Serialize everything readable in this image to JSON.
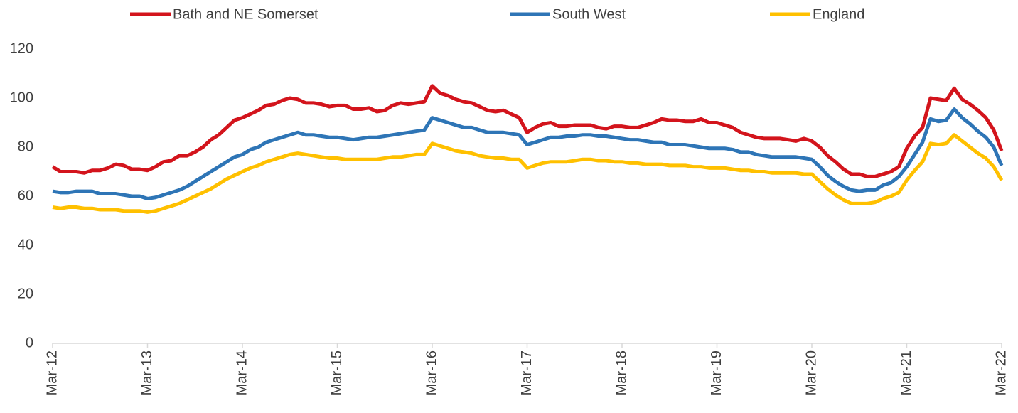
{
  "chart_data": {
    "type": "line",
    "categories": [
      "Mar-12",
      null,
      null,
      null,
      null,
      null,
      null,
      null,
      null,
      null,
      null,
      null,
      "Mar-13",
      null,
      null,
      null,
      null,
      null,
      null,
      null,
      null,
      null,
      null,
      null,
      "Mar-14",
      null,
      null,
      null,
      null,
      null,
      null,
      null,
      null,
      null,
      null,
      null,
      "Mar-15",
      null,
      null,
      null,
      null,
      null,
      null,
      null,
      null,
      null,
      null,
      null,
      "Mar-16",
      null,
      null,
      null,
      null,
      null,
      null,
      null,
      null,
      null,
      null,
      null,
      "Mar-17",
      null,
      null,
      null,
      null,
      null,
      null,
      null,
      null,
      null,
      null,
      null,
      "Mar-18",
      null,
      null,
      null,
      null,
      null,
      null,
      null,
      null,
      null,
      null,
      null,
      "Mar-19",
      null,
      null,
      null,
      null,
      null,
      null,
      null,
      null,
      null,
      null,
      null,
      "Mar-20",
      null,
      null,
      null,
      null,
      null,
      null,
      null,
      null,
      null,
      null,
      null,
      "Mar-21",
      null,
      null,
      null,
      null,
      null,
      null,
      null,
      null,
      null,
      null,
      null,
      "Mar-22"
    ],
    "series": [
      {
        "name": "Bath and NE Somerset",
        "color": "#d3141c",
        "values": [
          72,
          70,
          70,
          70,
          69.5,
          70.5,
          70.5,
          71.5,
          73,
          72.5,
          71,
          71,
          70.5,
          72,
          74,
          74.5,
          76.5,
          76.5,
          78,
          80,
          83,
          85,
          88,
          91,
          92,
          93.5,
          95,
          97,
          97.5,
          99,
          100,
          99.5,
          98,
          98,
          97.5,
          96.5,
          97,
          97,
          95.5,
          95.5,
          96,
          94.5,
          95,
          97,
          98,
          97.5,
          98,
          98.5,
          105,
          102,
          101,
          99.5,
          98.5,
          98,
          96.5,
          95,
          94.5,
          95,
          93.5,
          92,
          86,
          88,
          89.5,
          90,
          88.5,
          88.5,
          89,
          89,
          89,
          88,
          87.5,
          88.5,
          88.5,
          88,
          88,
          89,
          90,
          91.5,
          91,
          91,
          90.5,
          90.5,
          91.5,
          90,
          90,
          89,
          88,
          86,
          85,
          84,
          83.5,
          83.5,
          83.5,
          83,
          82.5,
          83.5,
          82.5,
          80,
          76.5,
          74,
          71,
          69,
          69,
          68,
          68,
          69,
          70,
          72,
          79.5,
          84.5,
          88,
          100,
          99.5,
          99,
          104,
          99.5,
          97.5,
          95,
          92,
          87,
          78.5
        ]
      },
      {
        "name": "South West",
        "color": "#2e75b6",
        "values": [
          62,
          61.5,
          61.5,
          62,
          62,
          62,
          61,
          61,
          61,
          60.5,
          60,
          60,
          59,
          59.5,
          60.5,
          61.5,
          62.5,
          64,
          66,
          68,
          70,
          72,
          74,
          76,
          77,
          79,
          80,
          82,
          83,
          84,
          85,
          86,
          85,
          85,
          84.5,
          84,
          84,
          83.5,
          83,
          83.5,
          84,
          84,
          84.5,
          85,
          85.5,
          86,
          86.5,
          87,
          92,
          91,
          90,
          89,
          88,
          88,
          87,
          86,
          86,
          86,
          85.5,
          85,
          81,
          82,
          83,
          84,
          84,
          84.5,
          84.5,
          85,
          85,
          84.5,
          84.5,
          84,
          83.5,
          83,
          83,
          82.5,
          82,
          82,
          81,
          81,
          81,
          80.5,
          80,
          79.5,
          79.5,
          79.5,
          79,
          78,
          78,
          77,
          76.5,
          76,
          76,
          76,
          76,
          75.5,
          75,
          72,
          68.5,
          66,
          64,
          62.5,
          62,
          62.5,
          62.5,
          64.5,
          65.5,
          68,
          72,
          77,
          82,
          91.5,
          90.5,
          91,
          95.5,
          92,
          89.5,
          86.5,
          84,
          80,
          72.5
        ]
      },
      {
        "name": "England",
        "color": "#ffc000",
        "values": [
          55.5,
          55,
          55.5,
          55.5,
          55,
          55,
          54.5,
          54.5,
          54.5,
          54,
          54,
          54,
          53.5,
          54,
          55,
          56,
          57,
          58.5,
          60,
          61.5,
          63,
          65,
          67,
          68.5,
          70,
          71.5,
          72.5,
          74,
          75,
          76,
          77,
          77.5,
          77,
          76.5,
          76,
          75.5,
          75.5,
          75,
          75,
          75,
          75,
          75,
          75.5,
          76,
          76,
          76.5,
          77,
          77,
          81.5,
          80.5,
          79.5,
          78.5,
          78,
          77.5,
          76.5,
          76,
          75.5,
          75.5,
          75,
          75,
          71.5,
          72.5,
          73.5,
          74,
          74,
          74,
          74.5,
          75,
          75,
          74.5,
          74.5,
          74,
          74,
          73.5,
          73.5,
          73,
          73,
          73,
          72.5,
          72.5,
          72.5,
          72,
          72,
          71.5,
          71.5,
          71.5,
          71,
          70.5,
          70.5,
          70,
          70,
          69.5,
          69.5,
          69.5,
          69.5,
          69,
          69,
          66,
          63,
          60.5,
          58.5,
          57,
          57,
          57,
          57.5,
          59,
          60,
          61.5,
          66.5,
          70.5,
          74,
          81.5,
          81,
          81.5,
          85,
          82.5,
          80,
          77.5,
          75.5,
          72,
          66.5
        ]
      }
    ],
    "ylim": [
      0,
      120
    ],
    "yticks": [
      0,
      20,
      40,
      60,
      80,
      100,
      120
    ],
    "grid": false,
    "legend": "top"
  }
}
